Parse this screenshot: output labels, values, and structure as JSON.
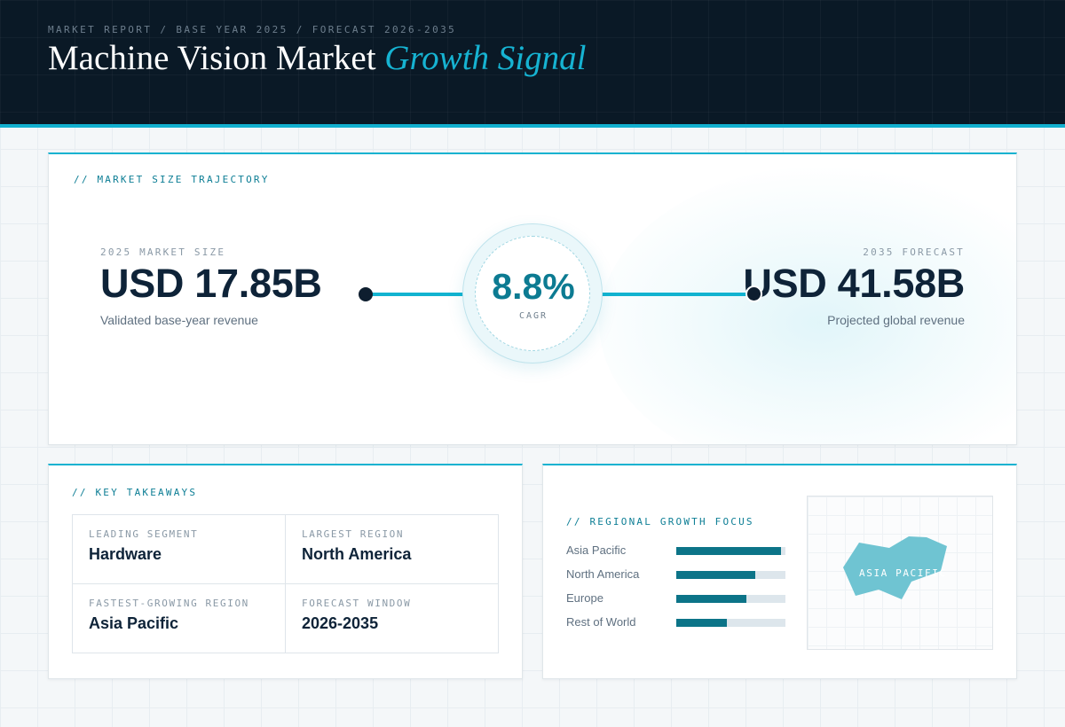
{
  "header": {
    "eyebrow": "MARKET REPORT / BASE YEAR 2025 / FORECAST 2026-2035",
    "title_main": "Machine Vision Market",
    "title_accent": "Growth Signal"
  },
  "trajectory": {
    "label": "// MARKET SIZE TRAJECTORY",
    "start": {
      "caption": "2025 MARKET SIZE",
      "value": "USD 17.85B",
      "note": "Validated base-year revenue"
    },
    "cagr": {
      "value": "8.8%",
      "label": "CAGR"
    },
    "end": {
      "caption": "2035 FORECAST",
      "value": "USD 41.58B",
      "note": "Projected global revenue"
    }
  },
  "takeaways": {
    "label": "// KEY TAKEAWAYS",
    "items": [
      {
        "caption": "LEADING SEGMENT",
        "value": "Hardware"
      },
      {
        "caption": "LARGEST REGION",
        "value": "North America"
      },
      {
        "caption": "FASTEST-GROWING REGION",
        "value": "Asia Pacific"
      },
      {
        "caption": "FORECAST WINDOW",
        "value": "2026-2035"
      }
    ]
  },
  "regional": {
    "label": "// REGIONAL GROWTH FOCUS",
    "bars": [
      {
        "name": "Asia Pacific",
        "level": 0.96
      },
      {
        "name": "North America",
        "level": 0.72
      },
      {
        "name": "Europe",
        "level": 0.64
      },
      {
        "name": "Rest of World",
        "level": 0.46
      }
    ],
    "map_label": "ASIA PACIFIC"
  },
  "colors": {
    "header_bg": "#0a1926",
    "accent": "#13b2d0",
    "bar_fill": "#0c7488",
    "map_shape": "#6fc4d2"
  }
}
